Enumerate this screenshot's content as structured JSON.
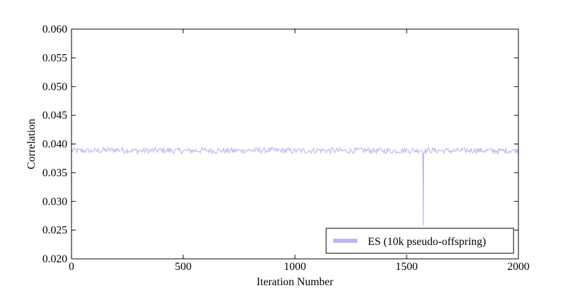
{
  "chart_data": {
    "type": "line",
    "title": "",
    "xlabel": "Iteration Number",
    "ylabel": "Correlation",
    "xlim": [
      0,
      2000
    ],
    "ylim": [
      0.02,
      0.06
    ],
    "x_ticks": [
      0,
      500,
      1000,
      1500,
      2000
    ],
    "x_tick_labels": [
      "0",
      "500",
      "1000",
      "1500",
      "2000"
    ],
    "y_ticks": [
      0.02,
      0.025,
      0.03,
      0.035,
      0.04,
      0.045,
      0.05,
      0.055,
      0.06
    ],
    "y_tick_labels": [
      "0.020",
      "0.025",
      "0.030",
      "0.035",
      "0.040",
      "0.045",
      "0.050",
      "0.055",
      "0.060"
    ],
    "grid": false,
    "legend_position": "bottom-right",
    "series": [
      {
        "name": "ES (10k pseudo-offspring)",
        "color": "#b9b9f3",
        "description": "Noisy line hovering around 0.0388 (range approx 0.0378–0.0400) over 2000 iterations, with a single sharp drop to about 0.0258 near iteration 1575.",
        "x": [
          0,
          100,
          200,
          300,
          400,
          500,
          600,
          700,
          800,
          900,
          1000,
          1100,
          1200,
          1300,
          1400,
          1500,
          1550,
          1570,
          1575,
          1580,
          1600,
          1700,
          1800,
          1900,
          2000
        ],
        "y": [
          0.0389,
          0.0388,
          0.039,
          0.0388,
          0.0389,
          0.0388,
          0.0389,
          0.0388,
          0.0389,
          0.0389,
          0.0388,
          0.0389,
          0.0388,
          0.0389,
          0.0388,
          0.0389,
          0.0389,
          0.039,
          0.0258,
          0.0388,
          0.0389,
          0.0388,
          0.0389,
          0.0388,
          0.0389
        ],
        "mean": 0.0388,
        "noise_amplitude": 0.0005
      }
    ]
  }
}
